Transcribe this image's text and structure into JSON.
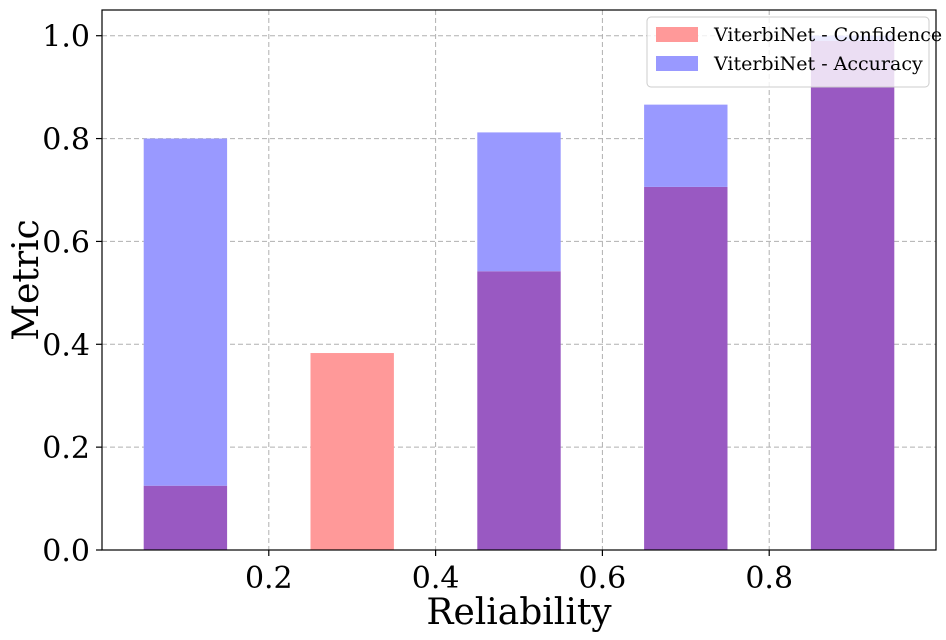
{
  "chart_data": {
    "type": "bar",
    "xlabel": "Reliability",
    "ylabel": "Metric",
    "xlim": [
      0.0,
      1.0
    ],
    "ylim": [
      0.0,
      1.05
    ],
    "xticks": [
      0.2,
      0.4,
      0.6,
      0.8
    ],
    "xtick_labels": [
      "0.2",
      "0.4",
      "0.6",
      "0.8"
    ],
    "yticks": [
      0.0,
      0.2,
      0.4,
      0.6,
      0.8,
      1.0
    ],
    "ytick_labels": [
      "0.0",
      "0.2",
      "0.4",
      "0.6",
      "0.8",
      "1.0"
    ],
    "grid": true,
    "legend_position": "top-right",
    "bar_width": 0.1,
    "x": [
      0.1,
      0.3,
      0.5,
      0.7,
      0.9
    ],
    "series": [
      {
        "name": "ViterbiNet - Confidence",
        "color": "#ff9999",
        "values": [
          0.125,
          0.383,
          0.542,
          0.706,
          0.99
        ]
      },
      {
        "name": "ViterbiNet - Accuracy",
        "color": "#9999ff",
        "values": [
          0.8,
          0.0,
          0.812,
          0.866,
          1.0
        ]
      }
    ],
    "overlap_color": "#9959c2"
  }
}
